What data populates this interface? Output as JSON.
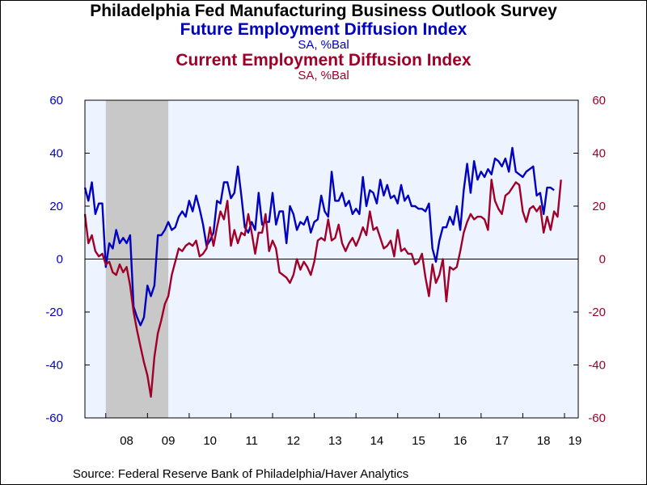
{
  "title": "Philadelphia Fed Manufacturing Business Outlook Survey",
  "source": "Source:  Federal Reserve Bank of Philadelphia/Haver Analytics",
  "colors": {
    "future": "#0000c0",
    "current": "#a00028",
    "plot_bg": "#eef4ff",
    "recession": "#c8c8c8"
  },
  "chart_data": {
    "type": "line",
    "left_axis": {
      "ylim": [
        -60,
        60
      ],
      "ticks": [
        -60,
        -40,
        -20,
        0,
        20,
        40,
        60
      ]
    },
    "right_axis": {
      "ylim": [
        -60,
        60
      ],
      "ticks": [
        -60,
        -40,
        -20,
        0,
        20,
        40,
        60
      ]
    },
    "x_range": [
      2007.5,
      2019.33
    ],
    "x_ticks": [
      {
        "label": "08",
        "x": 2008.5
      },
      {
        "label": "09",
        "x": 2009.5
      },
      {
        "label": "10",
        "x": 2010.5
      },
      {
        "label": "11",
        "x": 2011.5
      },
      {
        "label": "12",
        "x": 2012.5
      },
      {
        "label": "13",
        "x": 2013.5
      },
      {
        "label": "14",
        "x": 2014.5
      },
      {
        "label": "15",
        "x": 2015.5
      },
      {
        "label": "16",
        "x": 2016.5
      },
      {
        "label": "17",
        "x": 2017.5
      },
      {
        "label": "18",
        "x": 2018.5
      },
      {
        "label": "19",
        "x": 2019.5
      }
    ],
    "recession": [
      2008.0,
      2009.5
    ],
    "grid": false,
    "zero_line": true,
    "series": [
      {
        "name": "Future Employment Diffusion Index",
        "unit": "SA, %Bal",
        "axis": "left",
        "start": 2007.5,
        "step": 0.08333,
        "values": [
          27,
          22,
          29,
          17,
          21,
          21,
          -3,
          6,
          4,
          11,
          6,
          8,
          6,
          9,
          -18,
          -22,
          -25,
          -22,
          -10,
          -14,
          -10,
          9,
          9,
          11,
          14,
          11,
          12,
          16,
          18,
          16,
          22,
          18,
          24,
          19,
          13,
          5,
          7,
          10,
          22,
          21,
          29,
          29,
          23,
          25,
          35,
          24,
          12,
          10,
          14,
          11,
          25,
          13,
          14,
          14,
          25,
          13,
          18,
          18,
          6,
          20,
          17,
          11,
          14,
          13,
          16,
          10,
          14,
          15,
          24,
          18,
          16,
          33,
          22,
          22,
          25,
          20,
          22,
          17,
          19,
          17,
          31,
          20,
          26,
          25,
          21,
          30,
          24,
          28,
          23,
          24,
          21,
          28,
          22,
          24,
          20,
          20,
          19,
          19,
          18,
          21,
          4,
          -1,
          7,
          12,
          12,
          16,
          13,
          20,
          11,
          26,
          36,
          25,
          37,
          30,
          33,
          31,
          34,
          32,
          38,
          37,
          35,
          38,
          33,
          42,
          33,
          32,
          31,
          33,
          34,
          35,
          24,
          25,
          17,
          27,
          27,
          26
        ]
      },
      {
        "name": "Current Employment Diffusion Index",
        "unit": "SA, %Bal",
        "axis": "left",
        "start": 2007.5,
        "step": 0.08333,
        "values": [
          17,
          6,
          9,
          3,
          1,
          2,
          -2,
          -1,
          -5,
          -6,
          -2,
          -5,
          -3,
          -10,
          -20,
          -27,
          -33,
          -39,
          -44,
          -52,
          -37,
          -28,
          -23,
          -17,
          -14,
          -6,
          -1,
          4,
          3,
          5,
          6,
          5,
          7,
          1,
          2,
          4,
          12,
          5,
          12,
          18,
          15,
          22,
          5,
          11,
          6,
          10,
          9,
          17,
          10,
          2,
          10,
          10,
          17,
          3,
          7,
          4,
          -5,
          -6,
          -7,
          -9,
          -6,
          0,
          -4,
          -1,
          -3,
          -6,
          -1,
          7,
          8,
          7,
          15,
          7,
          8,
          13,
          6,
          3,
          6,
          8,
          5,
          8,
          12,
          9,
          18,
          11,
          12,
          8,
          4,
          5,
          7,
          1,
          11,
          3,
          4,
          2,
          2,
          -2,
          -1,
          2,
          -7,
          -14,
          -2,
          -9,
          -6,
          0,
          -16,
          -3,
          -4,
          -3,
          3,
          10,
          14,
          17,
          15,
          16,
          16,
          15,
          11,
          30,
          22,
          19,
          17,
          24,
          25,
          27,
          29,
          28,
          18,
          14,
          19,
          20,
          18,
          20,
          10,
          16,
          11,
          18,
          16,
          30
        ]
      }
    ]
  }
}
